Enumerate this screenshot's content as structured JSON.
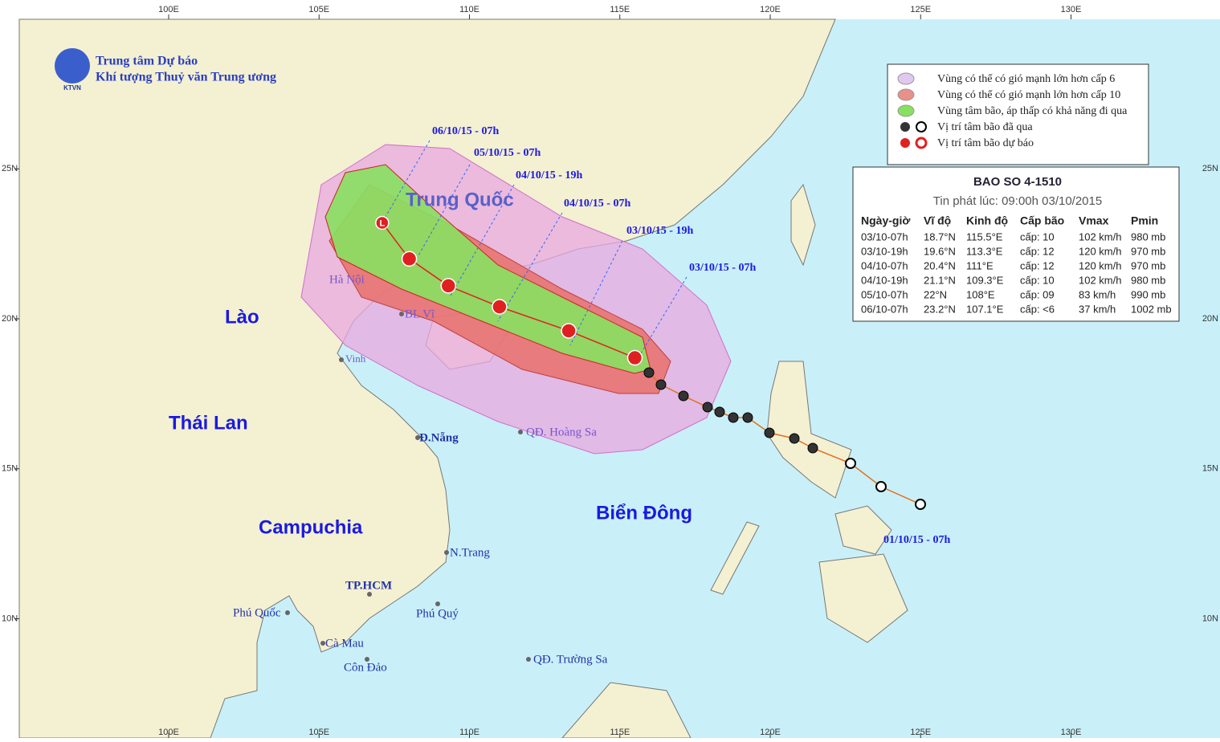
{
  "header": {
    "org_line1": "Trung tâm Dự báo",
    "org_line2": "Khí tượng Thuỷ văn Trung ương",
    "logo_text": "KTVN"
  },
  "axes": {
    "lon_ticks": [
      {
        "value": 100,
        "label": "100E"
      },
      {
        "value": 105,
        "label": "105E"
      },
      {
        "value": 110,
        "label": "110E"
      },
      {
        "value": 115,
        "label": "115E"
      },
      {
        "value": 120,
        "label": "120E"
      },
      {
        "value": 125,
        "label": "125E"
      },
      {
        "value": 130,
        "label": "130E"
      }
    ],
    "lat_ticks": [
      {
        "value": 10,
        "label": "10N"
      },
      {
        "value": 15,
        "label": "15N"
      },
      {
        "value": 20,
        "label": "20N"
      },
      {
        "value": 25,
        "label": "25N"
      }
    ]
  },
  "places": [
    "Trung Quốc",
    "Lào",
    "Thái Lan",
    "Campuchia",
    "Biển Đông",
    "Hà Nội",
    "BL Vĩ",
    "Vinh",
    "Đ.Nẵng",
    "QĐ. Hoàng Sa",
    "N.Trang",
    "TP.HCM",
    "Phú Quốc",
    "Phú Quý",
    "Cà Mau",
    "Côn Đảo",
    "QĐ. Trường Sa"
  ],
  "legend": [
    "Vùng có thể có gió mạnh lớn hơn cấp 6",
    "Vùng có thể có gió mạnh lớn hơn cấp 10",
    "Vùng tâm bão, áp thấp có khả năng đi qua",
    "Vị trí tâm bão đã qua",
    "Vị trí tâm bão dự báo"
  ],
  "storm_info": {
    "title": "BAO SO 4-1510",
    "subtitle": "Tin phát lúc: 09:00h 03/10/2015",
    "columns": [
      "Ngày-giờ",
      "Vĩ độ",
      "Kinh độ",
      "Cấp bão",
      "Vmax",
      "Pmin"
    ],
    "rows": [
      [
        "03/10-07h",
        "18.7°N",
        "115.5°E",
        "cấp: 10",
        "102 km/h",
        "980 mb"
      ],
      [
        "03/10-19h",
        "19.6°N",
        "113.3°E",
        "cấp: 12",
        "120 km/h",
        "970 mb"
      ],
      [
        "04/10-07h",
        "20.4°N",
        "111°E",
        "cấp: 12",
        "120 km/h",
        "970 mb"
      ],
      [
        "04/10-19h",
        "21.1°N",
        "109.3°E",
        "cấp: 10",
        "102 km/h",
        "980 mb"
      ],
      [
        "05/10-07h",
        "22°N",
        "108°E",
        "cấp: 09",
        "83 km/h",
        "990 mb"
      ],
      [
        "06/10-07h",
        "23.2°N",
        "107.1°E",
        "cấp: <6",
        "37 km/h",
        "1002 mb"
      ]
    ]
  },
  "low_symbol": "L",
  "forecast_labels": [
    "06/10/15 - 07h",
    "05/10/15 - 07h",
    "04/10/15 - 19h",
    "04/10/15 - 07h",
    "03/10/15 - 19h",
    "03/10/15 - 07h",
    "01/10/15 - 07h"
  ]
}
